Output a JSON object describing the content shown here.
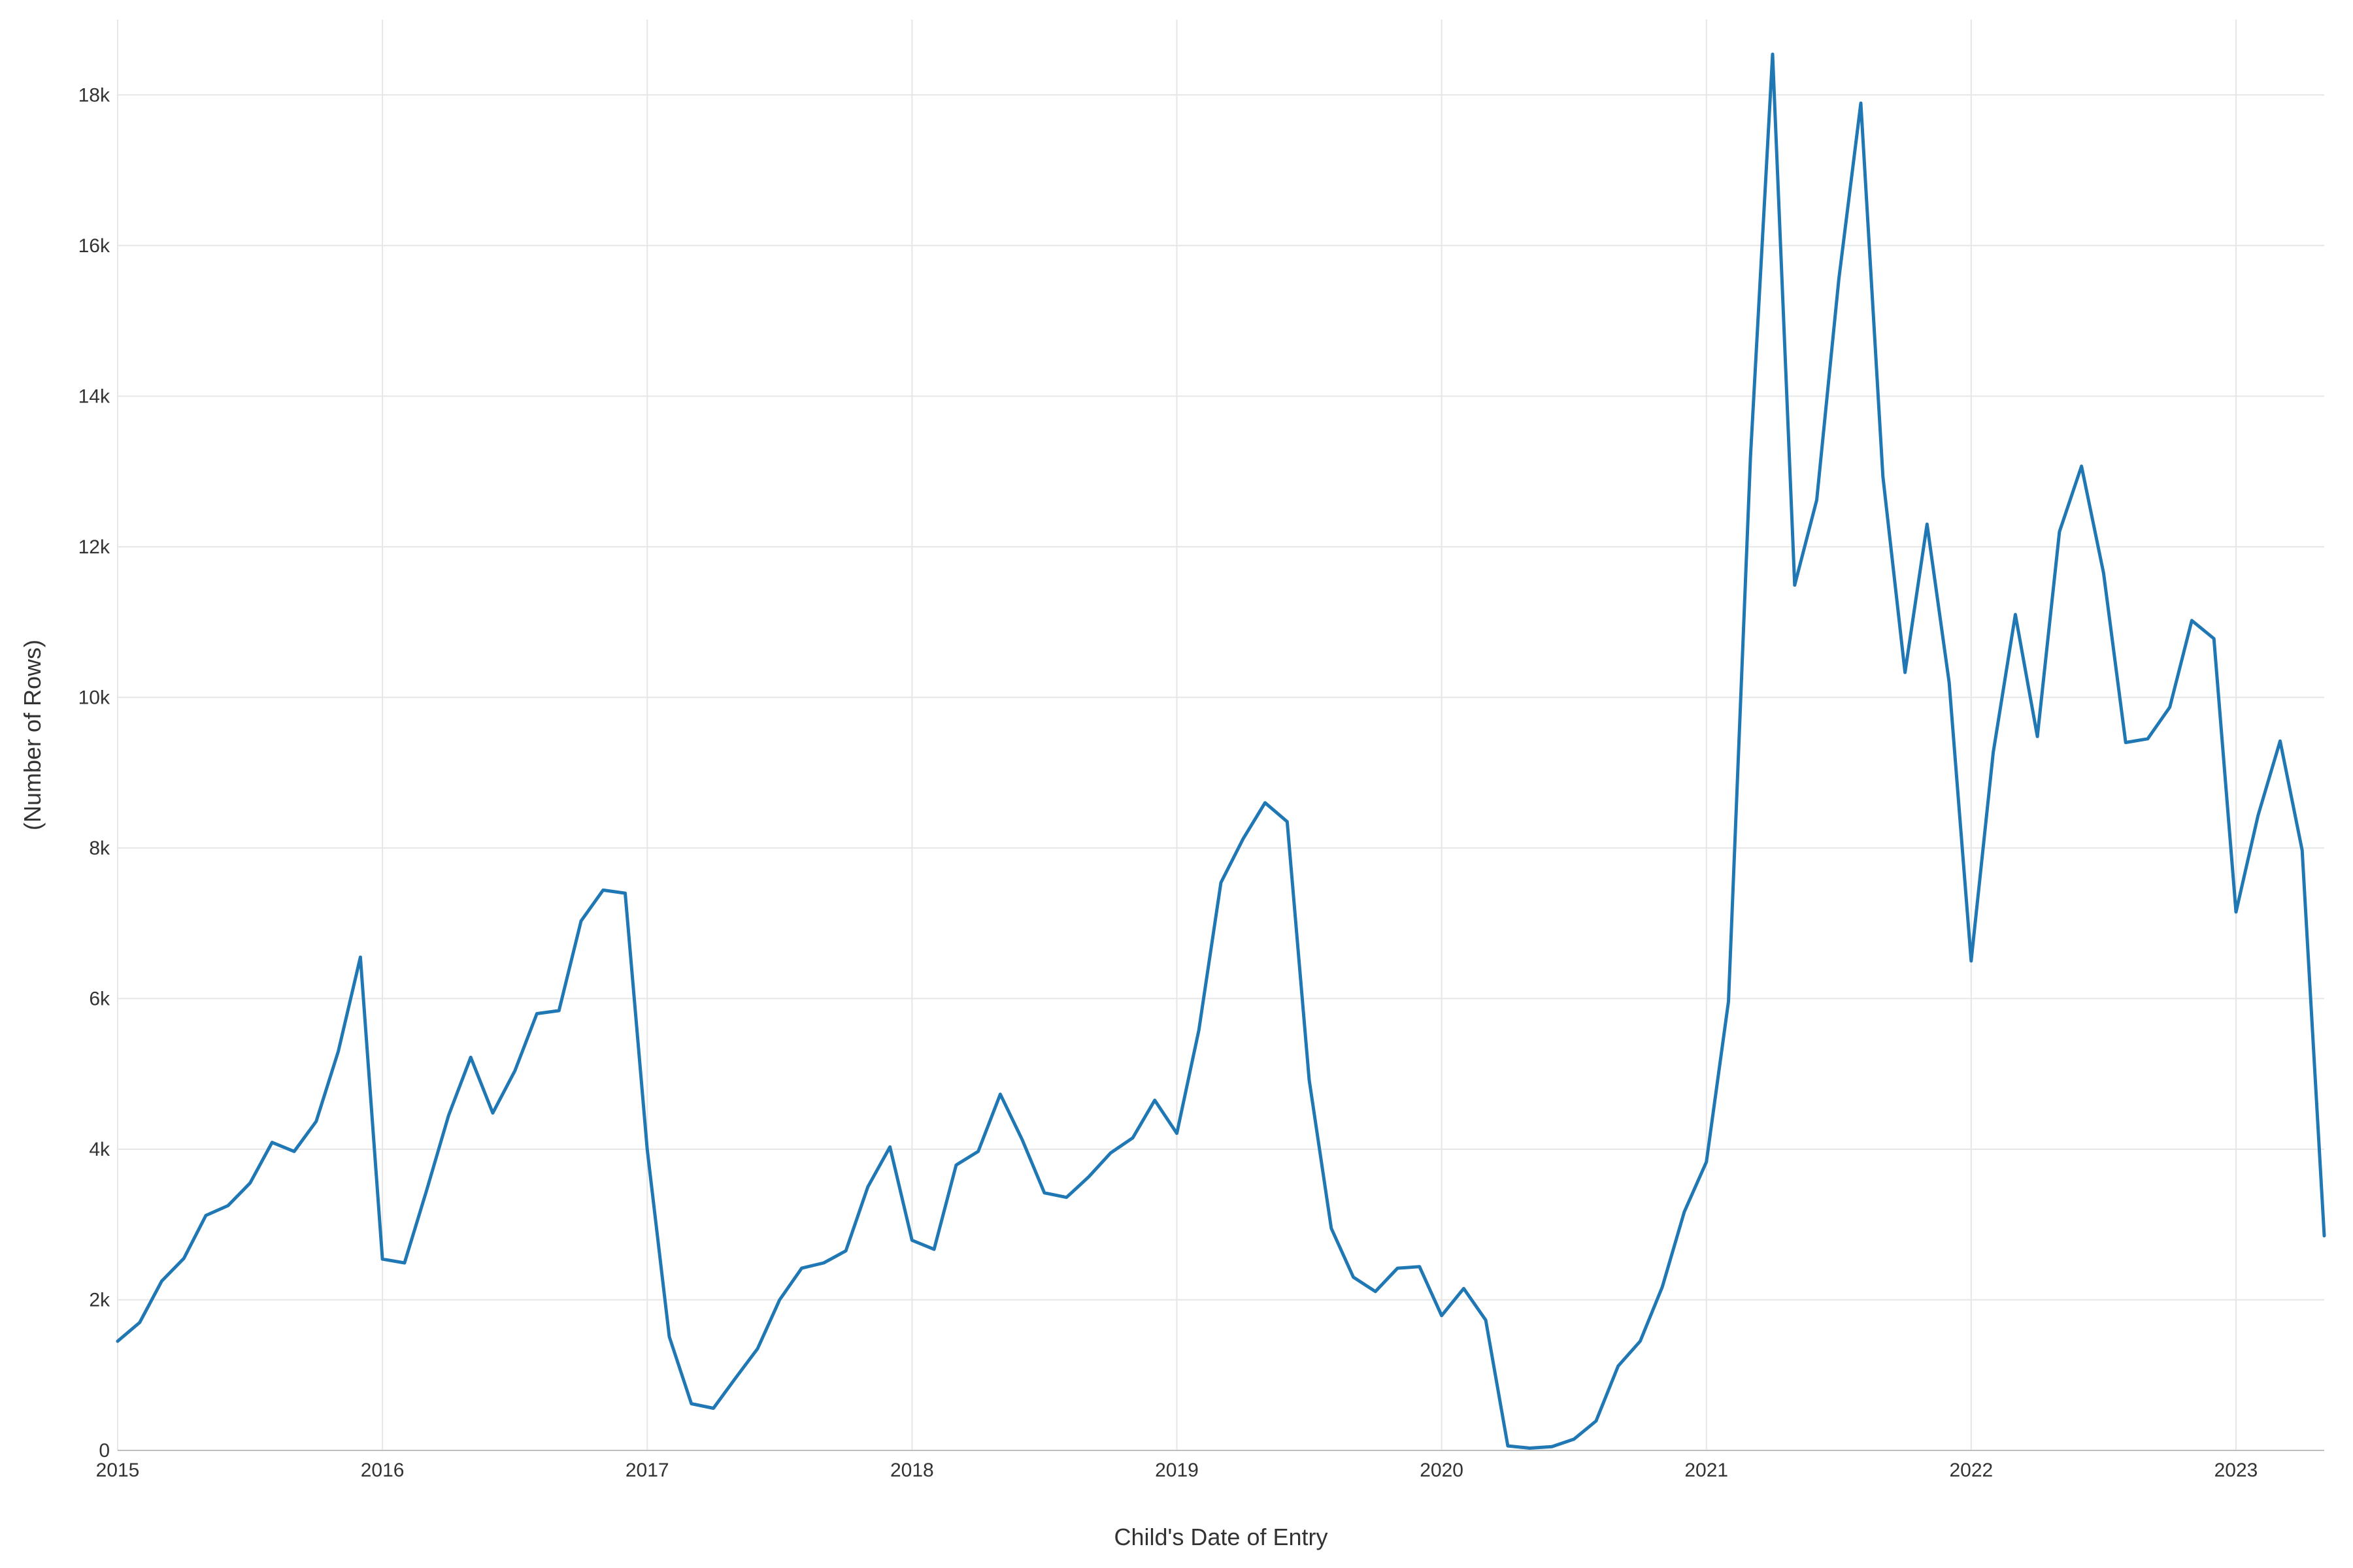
{
  "chart_data": {
    "type": "line",
    "title": "",
    "xlabel": "Child's Date of Entry",
    "ylabel": "(Number of Rows)",
    "xlim": [
      "2015-01",
      "2023-05"
    ],
    "ylim": [
      0,
      19000
    ],
    "x_ticks": [
      {
        "date": "2015-01",
        "label": "2015"
      },
      {
        "date": "2016-01",
        "label": "2016"
      },
      {
        "date": "2017-01",
        "label": "2017"
      },
      {
        "date": "2018-01",
        "label": "2018"
      },
      {
        "date": "2019-01",
        "label": "2019"
      },
      {
        "date": "2020-01",
        "label": "2020"
      },
      {
        "date": "2021-01",
        "label": "2021"
      },
      {
        "date": "2022-01",
        "label": "2022"
      },
      {
        "date": "2023-01",
        "label": "2023"
      }
    ],
    "y_ticks": [
      {
        "value": 0,
        "label": "0"
      },
      {
        "value": 2000,
        "label": "2k"
      },
      {
        "value": 4000,
        "label": "4k"
      },
      {
        "value": 6000,
        "label": "6k"
      },
      {
        "value": 8000,
        "label": "8k"
      },
      {
        "value": 10000,
        "label": "10k"
      },
      {
        "value": 12000,
        "label": "12k"
      },
      {
        "value": 14000,
        "label": "14k"
      },
      {
        "value": 16000,
        "label": "16k"
      },
      {
        "value": 18000,
        "label": "18k"
      }
    ],
    "grid": true,
    "legend": "none",
    "color": "#1f77b4",
    "series": [
      {
        "x": [
          "2015-01",
          "2015-02",
          "2015-03",
          "2015-04",
          "2015-05",
          "2015-06",
          "2015-07",
          "2015-08",
          "2015-09",
          "2015-10",
          "2015-11",
          "2015-12",
          "2016-01",
          "2016-02",
          "2016-03",
          "2016-04",
          "2016-05",
          "2016-06",
          "2016-07",
          "2016-08",
          "2016-09",
          "2016-10",
          "2016-11",
          "2016-12",
          "2017-01",
          "2017-02",
          "2017-03",
          "2017-04",
          "2017-05",
          "2017-06",
          "2017-07",
          "2017-08",
          "2017-09",
          "2017-10",
          "2017-11",
          "2017-12",
          "2018-01",
          "2018-02",
          "2018-03",
          "2018-04",
          "2018-05",
          "2018-06",
          "2018-07",
          "2018-08",
          "2018-09",
          "2018-10",
          "2018-11",
          "2018-12",
          "2019-01",
          "2019-02",
          "2019-03",
          "2019-04",
          "2019-05",
          "2019-06",
          "2019-07",
          "2019-08",
          "2019-09",
          "2019-10",
          "2019-11",
          "2019-12",
          "2020-01",
          "2020-02",
          "2020-03",
          "2020-04",
          "2020-05",
          "2020-06",
          "2020-07",
          "2020-08",
          "2020-09",
          "2020-10",
          "2020-11",
          "2020-12",
          "2021-01",
          "2021-02",
          "2021-03",
          "2021-04",
          "2021-05",
          "2021-06",
          "2021-07",
          "2021-08",
          "2021-09",
          "2021-10",
          "2021-11",
          "2021-12",
          "2022-01",
          "2022-02",
          "2022-03",
          "2022-04",
          "2022-05",
          "2022-06",
          "2022-07",
          "2022-08",
          "2022-09",
          "2022-10",
          "2022-11",
          "2022-12",
          "2023-01",
          "2023-02",
          "2023-03",
          "2023-04",
          "2023-05"
        ],
        "values": [
          1450,
          1700,
          2250,
          2550,
          3120,
          3250,
          3550,
          4090,
          3970,
          4370,
          5300,
          6550,
          2540,
          2490,
          3450,
          4450,
          5220,
          4480,
          5040,
          5800,
          5840,
          7030,
          7440,
          7400,
          4000,
          1510,
          620,
          560,
          960,
          1350,
          2000,
          2420,
          2490,
          2650,
          3500,
          4030,
          2790,
          2670,
          3790,
          3970,
          4730,
          4120,
          3420,
          3360,
          3630,
          3950,
          4150,
          4650,
          4210,
          5580,
          7540,
          8120,
          8600,
          8350,
          4920,
          2950,
          2300,
          2110,
          2420,
          2440,
          1790,
          2150,
          1730,
          60,
          30,
          50,
          150,
          390,
          1120,
          1450,
          2170,
          3170,
          3830,
          5960,
          13200,
          18540,
          11490,
          12620,
          15550,
          17890,
          12930,
          10330,
          12300,
          10200,
          6500,
          9270,
          11100,
          9480,
          12200,
          13070,
          11650,
          9400,
          9450,
          9870,
          11020,
          10780,
          7150,
          8430,
          9420,
          7970,
          2850
        ]
      }
    ]
  }
}
